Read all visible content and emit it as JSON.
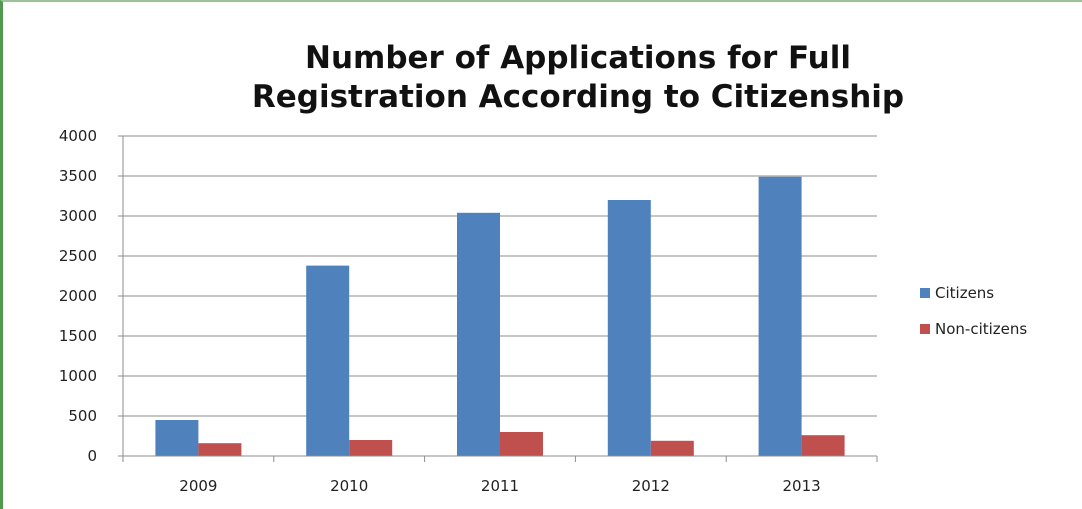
{
  "chart_data": {
    "type": "bar",
    "title_line1": "Number of Applications for Full",
    "title_line2": "Registration According to Citizenship",
    "categories": [
      "2009",
      "2010",
      "2011",
      "2012",
      "2013"
    ],
    "series": [
      {
        "name": "Citizens",
        "values": [
          450,
          2380,
          3040,
          3200,
          3490
        ],
        "color": "#4f81bd"
      },
      {
        "name": "Non-citizens",
        "values": [
          160,
          200,
          300,
          190,
          260
        ],
        "color": "#c0504d"
      }
    ],
    "ylim": [
      0,
      4000
    ],
    "yticks": [
      0,
      500,
      1000,
      1500,
      2000,
      2500,
      3000,
      3500,
      4000
    ],
    "grid": true,
    "legend_position": "right"
  },
  "colors": {
    "gridline": "#8c8c8c",
    "frame_left": "#4f9a4f"
  }
}
